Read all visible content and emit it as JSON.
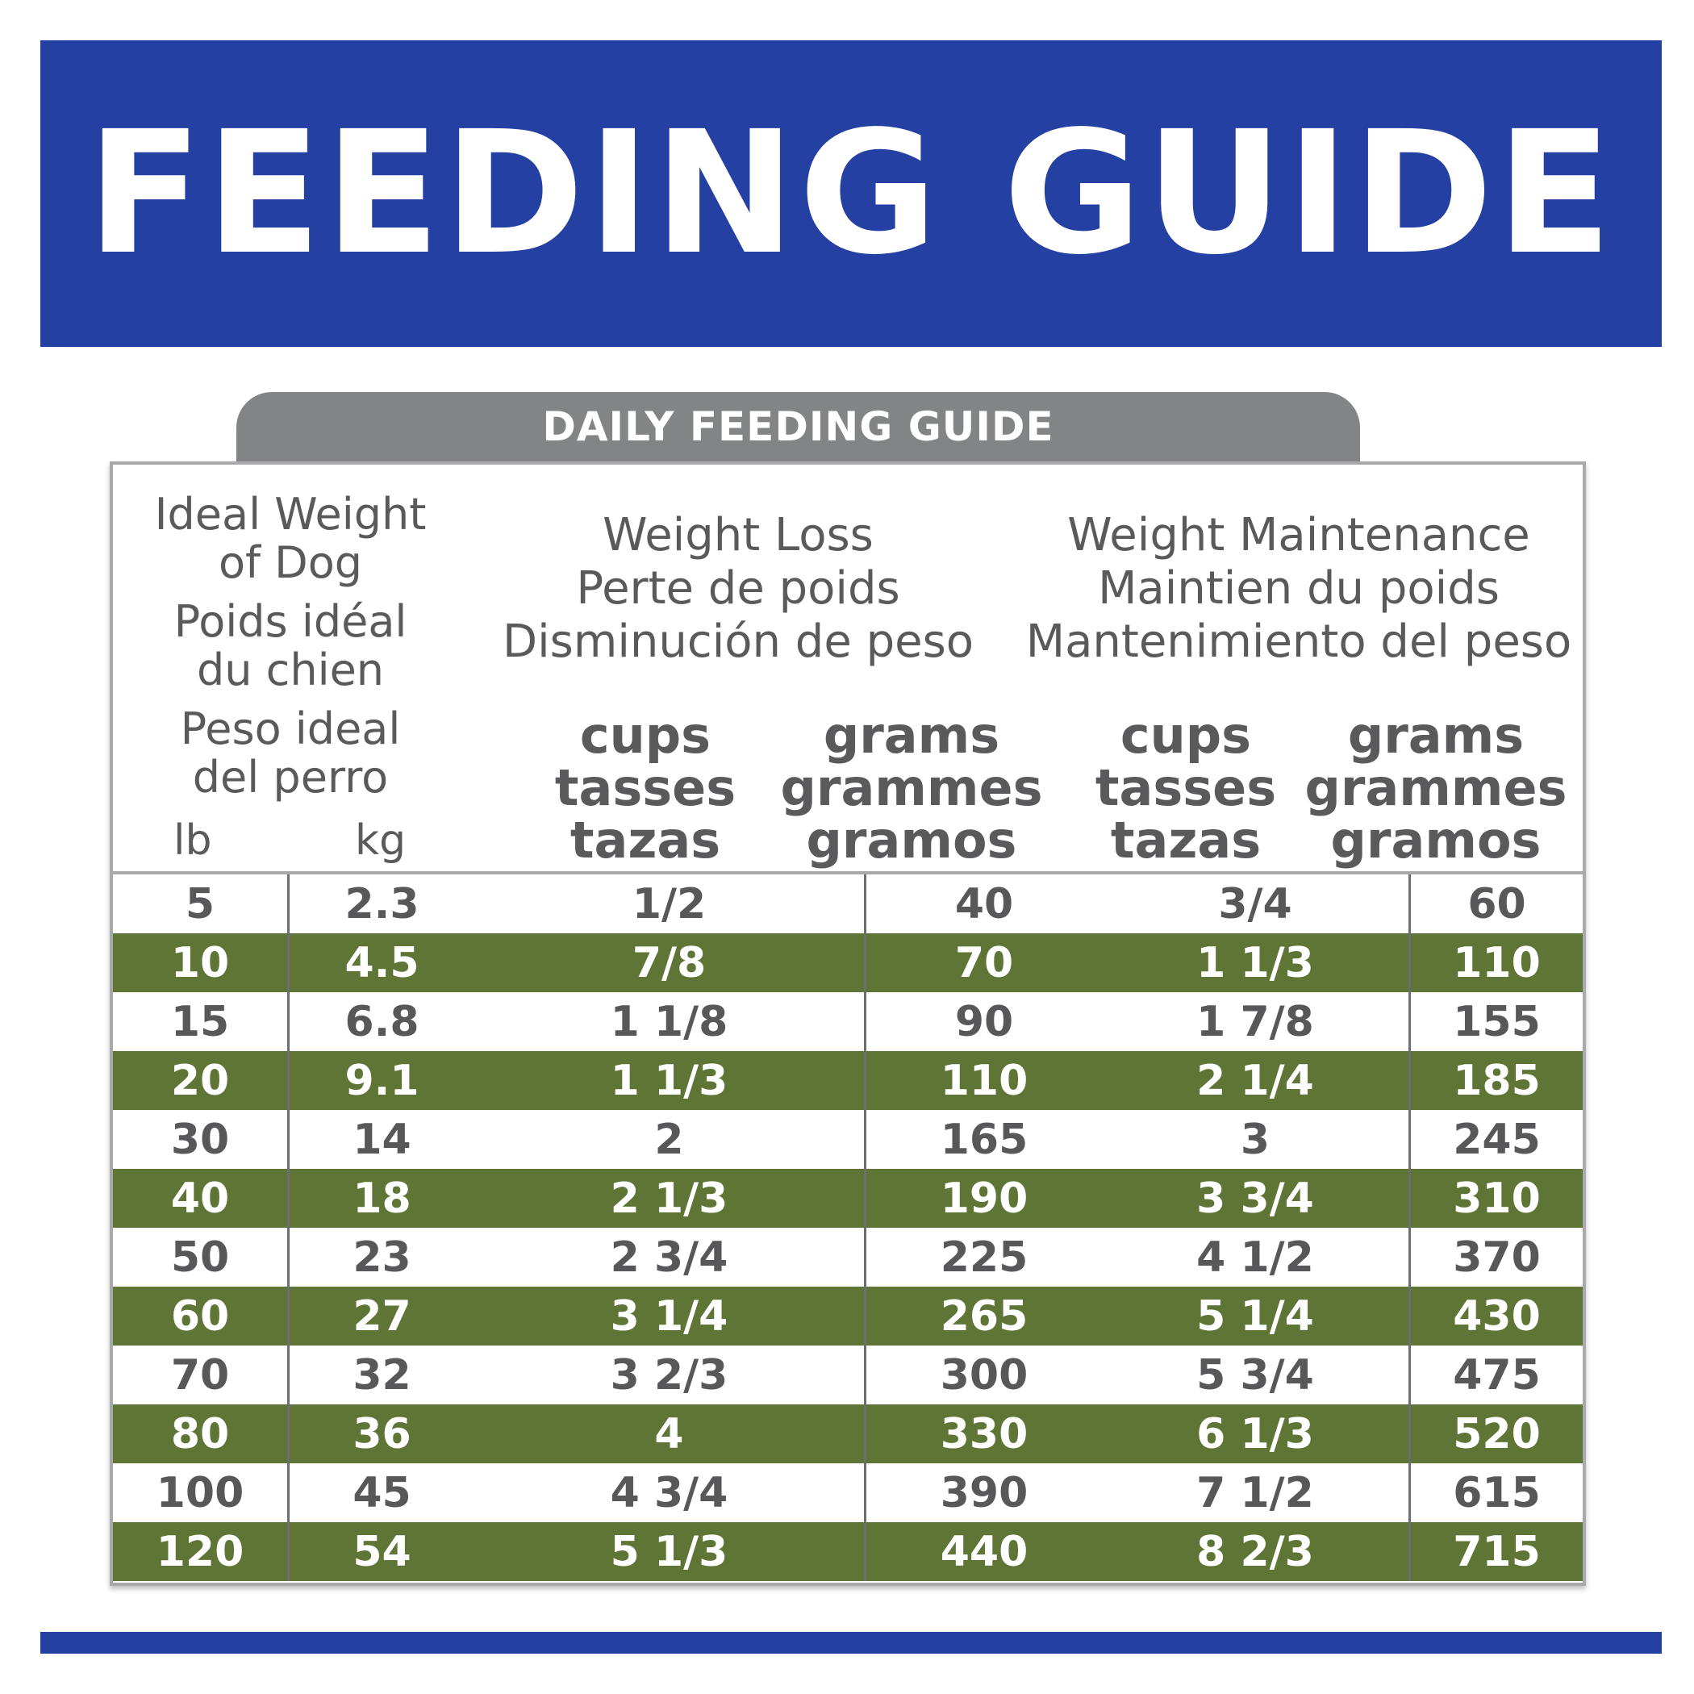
{
  "banner": {
    "title": "FEEDING GUIDE"
  },
  "tab": {
    "label": "DAILY FEEDING GUIDE"
  },
  "header": {
    "weight_lines": [
      "Ideal Weight",
      "of Dog",
      "Poids idéal",
      "du chien",
      "Peso ideal",
      "del perro"
    ],
    "unit_lb": "lb",
    "unit_kg": "kg",
    "loss_lines": [
      "Weight Loss",
      "Perte de poids",
      "Disminución de peso"
    ],
    "maint_lines": [
      "Weight Maintenance",
      "Maintien du poids",
      "Mantenimiento del peso"
    ],
    "cups_lines": [
      "cups",
      "tasses",
      "tazas"
    ],
    "grams_lines": [
      "grams",
      "grammes",
      "gramos"
    ]
  },
  "colors": {
    "banner": "#2540a3",
    "tab": "#838486",
    "alt_row": "#5f7535"
  },
  "rows": [
    {
      "lb": "5",
      "kg": "2.3",
      "loss_cups": "1/2",
      "loss_grams": "40",
      "maint_cups": "3/4",
      "maint_grams": "60"
    },
    {
      "lb": "10",
      "kg": "4.5",
      "loss_cups": "7/8",
      "loss_grams": "70",
      "maint_cups": "1 1/3",
      "maint_grams": "110"
    },
    {
      "lb": "15",
      "kg": "6.8",
      "loss_cups": "1 1/8",
      "loss_grams": "90",
      "maint_cups": "1 7/8",
      "maint_grams": "155"
    },
    {
      "lb": "20",
      "kg": "9.1",
      "loss_cups": "1 1/3",
      "loss_grams": "110",
      "maint_cups": "2 1/4",
      "maint_grams": "185"
    },
    {
      "lb": "30",
      "kg": "14",
      "loss_cups": "2",
      "loss_grams": "165",
      "maint_cups": "3",
      "maint_grams": "245"
    },
    {
      "lb": "40",
      "kg": "18",
      "loss_cups": "2 1/3",
      "loss_grams": "190",
      "maint_cups": "3 3/4",
      "maint_grams": "310"
    },
    {
      "lb": "50",
      "kg": "23",
      "loss_cups": "2 3/4",
      "loss_grams": "225",
      "maint_cups": "4 1/2",
      "maint_grams": "370"
    },
    {
      "lb": "60",
      "kg": "27",
      "loss_cups": "3 1/4",
      "loss_grams": "265",
      "maint_cups": "5 1/4",
      "maint_grams": "430"
    },
    {
      "lb": "70",
      "kg": "32",
      "loss_cups": "3 2/3",
      "loss_grams": "300",
      "maint_cups": "5 3/4",
      "maint_grams": "475"
    },
    {
      "lb": "80",
      "kg": "36",
      "loss_cups": "4",
      "loss_grams": "330",
      "maint_cups": "6 1/3",
      "maint_grams": "520"
    },
    {
      "lb": "100",
      "kg": "45",
      "loss_cups": "4 3/4",
      "loss_grams": "390",
      "maint_cups": "7 1/2",
      "maint_grams": "615"
    },
    {
      "lb": "120",
      "kg": "54",
      "loss_cups": "5 1/3",
      "loss_grams": "440",
      "maint_cups": "8 2/3",
      "maint_grams": "715"
    }
  ]
}
